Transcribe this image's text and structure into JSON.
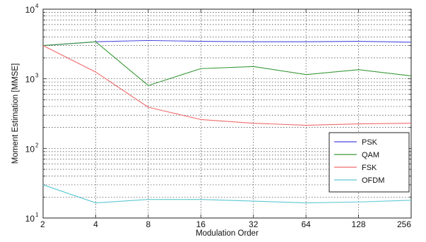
{
  "chart_data": {
    "type": "line",
    "title": "",
    "xlabel": "Modulation Order",
    "ylabel": "Moment Estimation [MMSE]",
    "x_ticks": [
      "2",
      "4",
      "8",
      "16",
      "32",
      "64",
      "128",
      "256"
    ],
    "x_scale": "log2",
    "y_scale": "log10",
    "ylim": [
      10,
      10000
    ],
    "y_ticks": [
      {
        "base": "10",
        "exp": "1",
        "value": 10
      },
      {
        "base": "10",
        "exp": "2",
        "value": 100
      },
      {
        "base": "10",
        "exp": "3",
        "value": 1000
      },
      {
        "base": "10",
        "exp": "4",
        "value": 10000
      }
    ],
    "grid": true,
    "legend_position": "right",
    "series": [
      {
        "name": "PSK",
        "color": "#4a4ae0",
        "values": [
          3000,
          3400,
          3550,
          3450,
          3400,
          3400,
          3450,
          3350
        ]
      },
      {
        "name": "QAM",
        "color": "#3a9a3a",
        "values": [
          3000,
          3400,
          800,
          1400,
          1500,
          1150,
          1350,
          1100
        ]
      },
      {
        "name": "FSK",
        "color": "#f06a6a",
        "values": [
          3000,
          1250,
          390,
          260,
          230,
          215,
          225,
          230
        ]
      },
      {
        "name": "OFDM",
        "color": "#5cc8d4",
        "values": [
          30,
          16.5,
          18.5,
          18.5,
          17.5,
          16.5,
          17,
          18
        ]
      }
    ]
  }
}
